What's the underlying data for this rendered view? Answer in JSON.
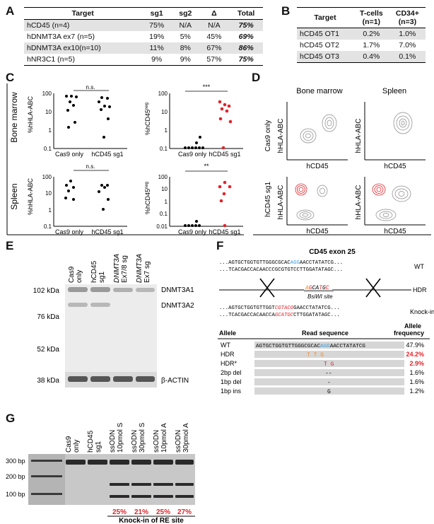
{
  "panels": {
    "a": "A",
    "b": "B",
    "c": "C",
    "d": "D",
    "e": "E",
    "f": "F",
    "g": "G"
  },
  "tableA": {
    "headers": [
      "Target",
      "sg1",
      "sg2",
      "Δ",
      "Total"
    ],
    "rows": [
      {
        "target": "hCD45 (n=4)",
        "sg1": "75%",
        "sg2": "N/A",
        "delta": "N/A",
        "total": "75%"
      },
      {
        "target": "hDNMT3A ex7 (n=5)",
        "sg1": "19%",
        "sg2": "5%",
        "delta": "45%",
        "total": "69%"
      },
      {
        "target": "hDNMT3A ex10(n=10)",
        "sg1": "11%",
        "sg2": "8%",
        "delta": "67%",
        "total": "86%"
      },
      {
        "target": "hNR3C1 (n=5)",
        "sg1": "9%",
        "sg2": "9%",
        "delta": "57%",
        "total": "75%"
      }
    ]
  },
  "tableB": {
    "headers": {
      "target": "Target",
      "tcells": "T-cells",
      "tcells_n": "(n=1)",
      "cd34": "CD34+",
      "cd34_n": "(n=3)"
    },
    "rows": [
      {
        "target": "hCD45 OT1",
        "tcells": "0.2%",
        "cd34": "1.0%"
      },
      {
        "target": "hCD45 OT2",
        "tcells": "1.7%",
        "cd34": "7.0%"
      },
      {
        "target": "hCD45 OT3",
        "tcells": "0.4%",
        "cd34": "0.1%"
      }
    ]
  },
  "panelC": {
    "row_labels": [
      "Bone marrow",
      "Spleen"
    ],
    "group_labels": [
      "Cas9 only",
      "hCD45 sg1"
    ],
    "ylabel_hla": "%hHLA-ABC",
    "ylabel_cd45_prefix": "%hCD45",
    "ylabel_cd45_sup": "neg",
    "ticks_bm": [
      "100",
      "10",
      "1",
      "0.1"
    ],
    "ticks_sp_hla": [
      "100",
      "10",
      "1",
      "0.1"
    ],
    "ticks_sp_cd45": [
      "100",
      "10",
      "1",
      "0.1",
      "0.01"
    ],
    "sig": {
      "bm_hla": "n.s.",
      "bm_cd45": "***",
      "sp_hla": "n.s.",
      "sp_cd45": "**"
    }
  },
  "panelD": {
    "col_labels": [
      "Bone marrow",
      "Spleen"
    ],
    "row_labels": [
      "Cas9 only",
      "hCD45 sg1"
    ],
    "xlabel": "hCD45",
    "ylabel": "hHLA-ABC"
  },
  "panelE": {
    "lanes": [
      {
        "l1": "Cas9",
        "l2": "only",
        "italic": false
      },
      {
        "l1": "hCD45",
        "l2": "sg1",
        "italic": false
      },
      {
        "l1": "DNMT3A",
        "l2": "Ex7/8 sg",
        "italic": true
      },
      {
        "l1": "DNMT3A",
        "l2": "Ex7 sg",
        "italic": true
      }
    ],
    "markers": [
      "102 kDa",
      "76 kDa",
      "52 kDa",
      "38 kDa"
    ],
    "bands": [
      "DNMT3A1",
      "DNMT3A2",
      "β-ACTIN"
    ]
  },
  "panelF": {
    "title": "CD45 exon 25",
    "wt_top_pre": "...AGTGCTGGTGTTGGGCGCAC",
    "wt_top_hl": "AGG",
    "wt_top_post": "AACCTATATCG...",
    "wt_bot": "...TCACGACCACAACCCGCGTGTCCTTGGATATAGC...",
    "wt_label": "WT",
    "hdr_pre": "A",
    "hdr_o1": "G",
    "hdr_mid": "CA",
    "hdr_o2": "T",
    "hdr_mid2": "G",
    "hdr_o3": "C",
    "hdr_label": "HDR",
    "site": "BsiWI site",
    "ki_top_pre": "...AGTGCTGGTGTTGGT",
    "ki_top_c": "CGTACG",
    "ki_top_post": "GAACCTATATCG...",
    "ki_bot_pre": "...TCACGACCACAACCA",
    "ki_bot_c": "GCATGC",
    "ki_bot_post": "CTTGGATATAGC...",
    "ki_label": "Knock-in",
    "headers": {
      "allele": "Allele",
      "read": "Read sequence",
      "freq1": "Allele",
      "freq2": "frequency"
    },
    "ref_pre": "AGTGCTGGTGTTGGGCGCAC",
    "ref_hl": "AGG",
    "ref_post": "AACCTATATCG",
    "rows": [
      {
        "allele": "WT",
        "freq": "47.9%",
        "red": false,
        "mark": ""
      },
      {
        "allele": "HDR",
        "freq": "24.2%",
        "red": true,
        "mark": "T    T   G"
      },
      {
        "allele": "HDR*",
        "freq": "2.9%",
        "red": true,
        "mark": "T   G"
      },
      {
        "allele": "2bp del",
        "freq": "1.6%",
        "red": false,
        "mark": "--"
      },
      {
        "allele": "1bp del",
        "freq": "1.6%",
        "red": false,
        "mark": "-"
      },
      {
        "allele": "1bp ins",
        "freq": "1.2%",
        "red": false,
        "mark": "G"
      }
    ]
  },
  "panelG": {
    "lanes": [
      {
        "l1": "Cas9",
        "l2": "only",
        "l3": ""
      },
      {
        "l1": "hCD45",
        "l2": "sg1",
        "l3": ""
      },
      {
        "l1": "ssODN",
        "l2": "10pmol S",
        "l3": ""
      },
      {
        "l1": "ssODN",
        "l2": "30pmol S",
        "l3": ""
      },
      {
        "l1": "ssODN",
        "l2": "10pmol A",
        "l3": ""
      },
      {
        "l1": "ssODN",
        "l2": "30pmol A",
        "l3": ""
      }
    ],
    "markers": [
      "300 bp",
      "200 bp",
      "100 bp"
    ],
    "percents": [
      "25%",
      "21%",
      "25%",
      "27%"
    ],
    "caption": "Knock-in of RE site"
  },
  "colors": {
    "red": "#e0242b",
    "blue": "#3a9ad9",
    "orange": "#f28c28",
    "grey": "#d6d6d6"
  }
}
